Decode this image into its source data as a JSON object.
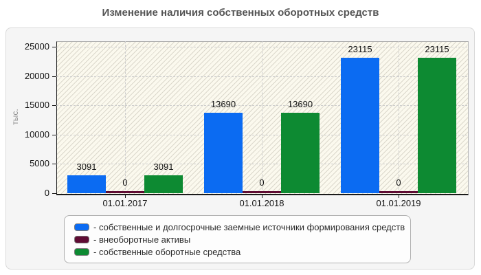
{
  "chart_data": {
    "type": "bar",
    "title": "Изменение наличия собственных оборотных средств",
    "xlabel": "",
    "ylabel": "тыс.",
    "categories": [
      "01.01.2017",
      "01.01.2018",
      "01.01.2019"
    ],
    "series": [
      {
        "name": "собственные и долгосрочные заемные источники формирования средств",
        "color": "#0b6bf2",
        "values": [
          3091,
          13690,
          23115
        ]
      },
      {
        "name": "внеоборотные активы",
        "color": "#5e0b33",
        "values": [
          0,
          0,
          0
        ]
      },
      {
        "name": "собственные оборотные средства",
        "color": "#0d8a32",
        "values": [
          3091,
          13690,
          23115
        ]
      }
    ],
    "value_labels": true,
    "ylim": [
      0,
      25000
    ],
    "yticks": [
      0,
      5000,
      10000,
      15000,
      20000,
      25000
    ],
    "grid": true,
    "plot_background": "hatched",
    "legend_position": "bottom",
    "legend_prefix": "- "
  }
}
